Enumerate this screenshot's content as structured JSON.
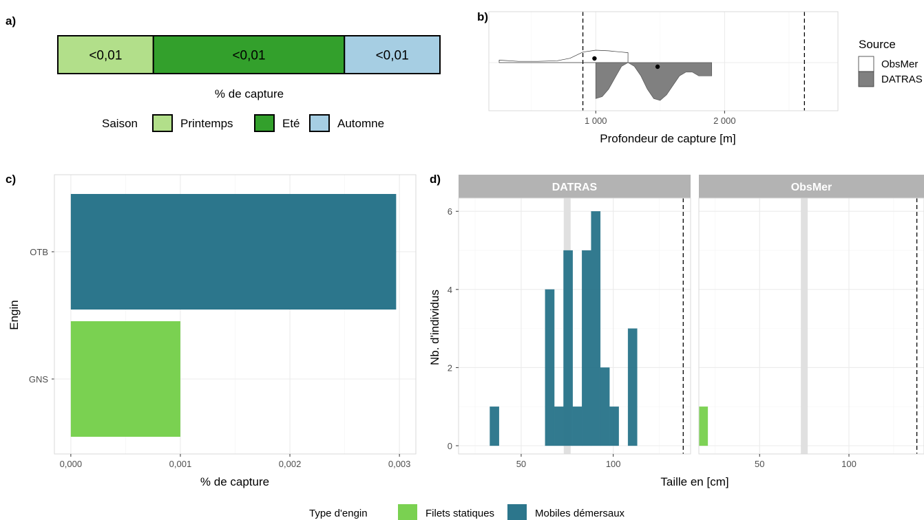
{
  "panels": {
    "a": "a)",
    "b": "b)",
    "c": "c)",
    "d": "d)"
  },
  "colors": {
    "printemps": "#b2df8a",
    "ete": "#33a02c",
    "automne": "#a6cee3",
    "filets_statiques": "#7ad151",
    "mobiles_demersaux": "#2c768c",
    "datras_density": "#808080",
    "strip": "#b3b3b3",
    "marker": "#e0e0e0"
  },
  "chart_data": [
    {
      "id": "a",
      "type": "bar",
      "orientation": "horizontal-stacked-normalized",
      "xlabel": "% de capture",
      "segments": [
        {
          "season": "Printemps",
          "share": 0.25,
          "label": "<0,01"
        },
        {
          "season": "Eté",
          "share": 0.5,
          "label": "<0,01"
        },
        {
          "season": "Automne",
          "share": 0.25,
          "label": "<0,01"
        }
      ],
      "legend": {
        "title": "Saison",
        "entries": [
          "Printemps",
          "Eté",
          "Automne"
        ],
        "position": "bottom"
      }
    },
    {
      "id": "b",
      "type": "area",
      "subtype": "mirrored density",
      "xlabel": "Profondeur de capture [m]",
      "xlim": [
        170,
        2880
      ],
      "xticks": [
        1000,
        2000
      ],
      "xtick_labels": [
        "1 000",
        "2 000"
      ],
      "vlines": [
        900,
        2620
      ],
      "series": [
        {
          "name": "ObsMer",
          "x": [
            250,
            400,
            550,
            700,
            800,
            900,
            1000,
            1100,
            1150,
            1200,
            1250
          ],
          "density": [
            0.2,
            0.1,
            0.1,
            0.15,
            0.35,
            0.85,
            1.0,
            0.95,
            0.9,
            0.85,
            0.8
          ],
          "point": 990
        },
        {
          "name": "DATRAS",
          "x": [
            1000,
            1050,
            1100,
            1150,
            1200,
            1250,
            1300,
            1350,
            1400,
            1450,
            1500,
            1550,
            1600,
            1650,
            1700,
            1750,
            1800,
            1900
          ],
          "density": [
            0.95,
            0.9,
            0.7,
            0.4,
            0.1,
            0.0,
            0.1,
            0.35,
            0.7,
            0.95,
            1.0,
            0.85,
            0.6,
            0.35,
            0.25,
            0.25,
            0.35,
            0.35
          ],
          "point": 1480
        }
      ],
      "legend": {
        "title": "Source",
        "entries": [
          "ObsMer",
          "DATRAS"
        ],
        "position": "right"
      }
    },
    {
      "id": "c",
      "type": "bar",
      "orientation": "horizontal",
      "xlabel": "% de capture",
      "ylabel": "Engin",
      "categories": [
        "OTB",
        "GNS"
      ],
      "values": [
        0.00297,
        0.001
      ],
      "groups": [
        "Mobiles démersaux",
        "Filets statiques"
      ],
      "xlim": [
        -0.00015,
        0.00315
      ],
      "xticks": [
        0,
        0.001,
        0.002,
        0.003
      ],
      "xtick_labels": [
        "0,000",
        "0,001",
        "0,002",
        "0,003"
      ]
    },
    {
      "id": "d",
      "type": "bar",
      "subtype": "histogram facets",
      "xlabel": "Taille en [cm]",
      "ylabel": "Nb. d'individus",
      "xlim": [
        16,
        142
      ],
      "ylim": [
        0,
        6.55
      ],
      "xticks": [
        50,
        100
      ],
      "yticks": [
        0,
        2,
        4,
        6
      ],
      "bin_width": 5,
      "vline_shaded": 75,
      "vline_dashed": 138,
      "facets": [
        {
          "name": "DATRAS",
          "bins": [
            {
              "x0": 33,
              "count": 1
            },
            {
              "x0": 63,
              "count": 4
            },
            {
              "x0": 68,
              "count": 1
            },
            {
              "x0": 73,
              "count": 5
            },
            {
              "x0": 78,
              "count": 1
            },
            {
              "x0": 83,
              "count": 5
            },
            {
              "x0": 88,
              "count": 6
            },
            {
              "x0": 93,
              "count": 2
            },
            {
              "x0": 98,
              "count": 1
            },
            {
              "x0": 108,
              "count": 3
            }
          ],
          "group": "Mobiles démersaux"
        },
        {
          "name": "ObsMer",
          "bins": [
            {
              "x0": 16,
              "count": 1
            }
          ],
          "group": "Filets statiques"
        }
      ]
    }
  ],
  "legend_bottom": {
    "title": "Type d'engin",
    "entries": [
      "Filets statiques",
      "Mobiles démersaux"
    ]
  }
}
